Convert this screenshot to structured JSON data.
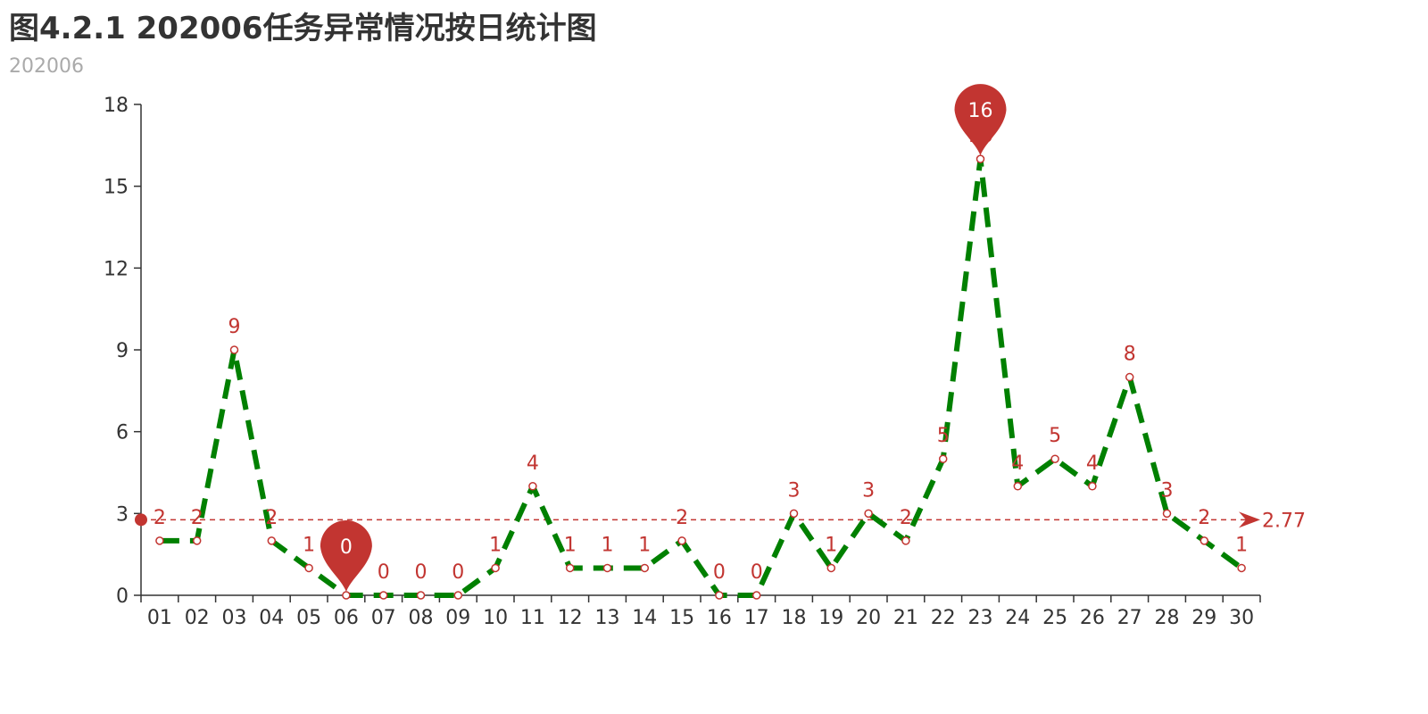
{
  "title": "图4.2.1 202006任务异常情况按日统计图",
  "subtitle": "202006",
  "colors": {
    "line": "#008000",
    "marker": "#c23531",
    "axis": "#333333",
    "title": "#333333",
    "subtitle": "#aaaaaa"
  },
  "chart_data": {
    "type": "line",
    "title": "图4.2.1 202006任务异常情况按日统计图",
    "subtitle": "202006",
    "categories": [
      "01",
      "02",
      "03",
      "04",
      "05",
      "06",
      "07",
      "08",
      "09",
      "10",
      "11",
      "12",
      "13",
      "14",
      "15",
      "16",
      "17",
      "18",
      "19",
      "20",
      "21",
      "22",
      "23",
      "24",
      "25",
      "26",
      "27",
      "28",
      "29",
      "30"
    ],
    "series": [
      {
        "values": [
          2,
          2,
          9,
          2,
          1,
          0,
          0,
          0,
          0,
          1,
          4,
          1,
          1,
          1,
          2,
          0,
          0,
          3,
          1,
          3,
          2,
          5,
          16,
          4,
          5,
          4,
          8,
          3,
          2,
          1
        ]
      }
    ],
    "yticks": [
      "0",
      "3",
      "6",
      "9",
      "12",
      "15",
      "18"
    ],
    "ylim": [
      0,
      18
    ],
    "mark_points": {
      "max_label": "16",
      "min_label": "0"
    },
    "mark_line": {
      "average_label": "2.77",
      "value": 2.77
    },
    "line_style": "dashed",
    "grid": false,
    "legend": "none"
  }
}
